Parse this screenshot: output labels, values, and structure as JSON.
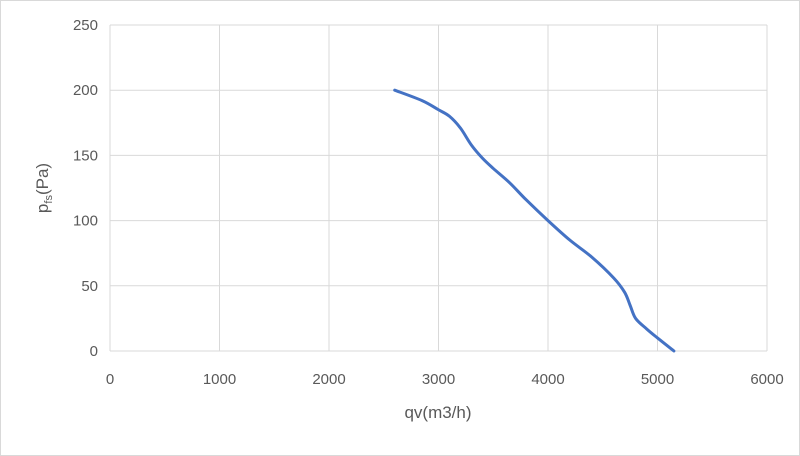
{
  "chart_data": {
    "type": "line",
    "title": "",
    "xlabel": "qv(m3/h)",
    "ylabel": {
      "main": "p",
      "sub": "fs",
      "unit": "(Pa)"
    },
    "xlim": [
      0,
      6000
    ],
    "ylim": [
      0,
      250
    ],
    "x_ticks": [
      0,
      1000,
      2000,
      3000,
      4000,
      5000,
      6000
    ],
    "y_ticks": [
      0,
      50,
      100,
      150,
      200,
      250
    ],
    "grid": true,
    "legend": "none",
    "series": [
      {
        "color": "#4472c4",
        "points": [
          [
            2600,
            200
          ],
          [
            2850,
            192
          ],
          [
            3000,
            185
          ],
          [
            3100,
            180
          ],
          [
            3200,
            171
          ],
          [
            3300,
            158
          ],
          [
            3400,
            148
          ],
          [
            3500,
            140
          ],
          [
            3650,
            129
          ],
          [
            3800,
            116
          ],
          [
            4000,
            100
          ],
          [
            4200,
            85
          ],
          [
            4400,
            72
          ],
          [
            4600,
            56
          ],
          [
            4700,
            45
          ],
          [
            4750,
            35
          ],
          [
            4800,
            25
          ],
          [
            4900,
            17
          ],
          [
            5000,
            10
          ],
          [
            5150,
            0
          ]
        ]
      }
    ]
  }
}
